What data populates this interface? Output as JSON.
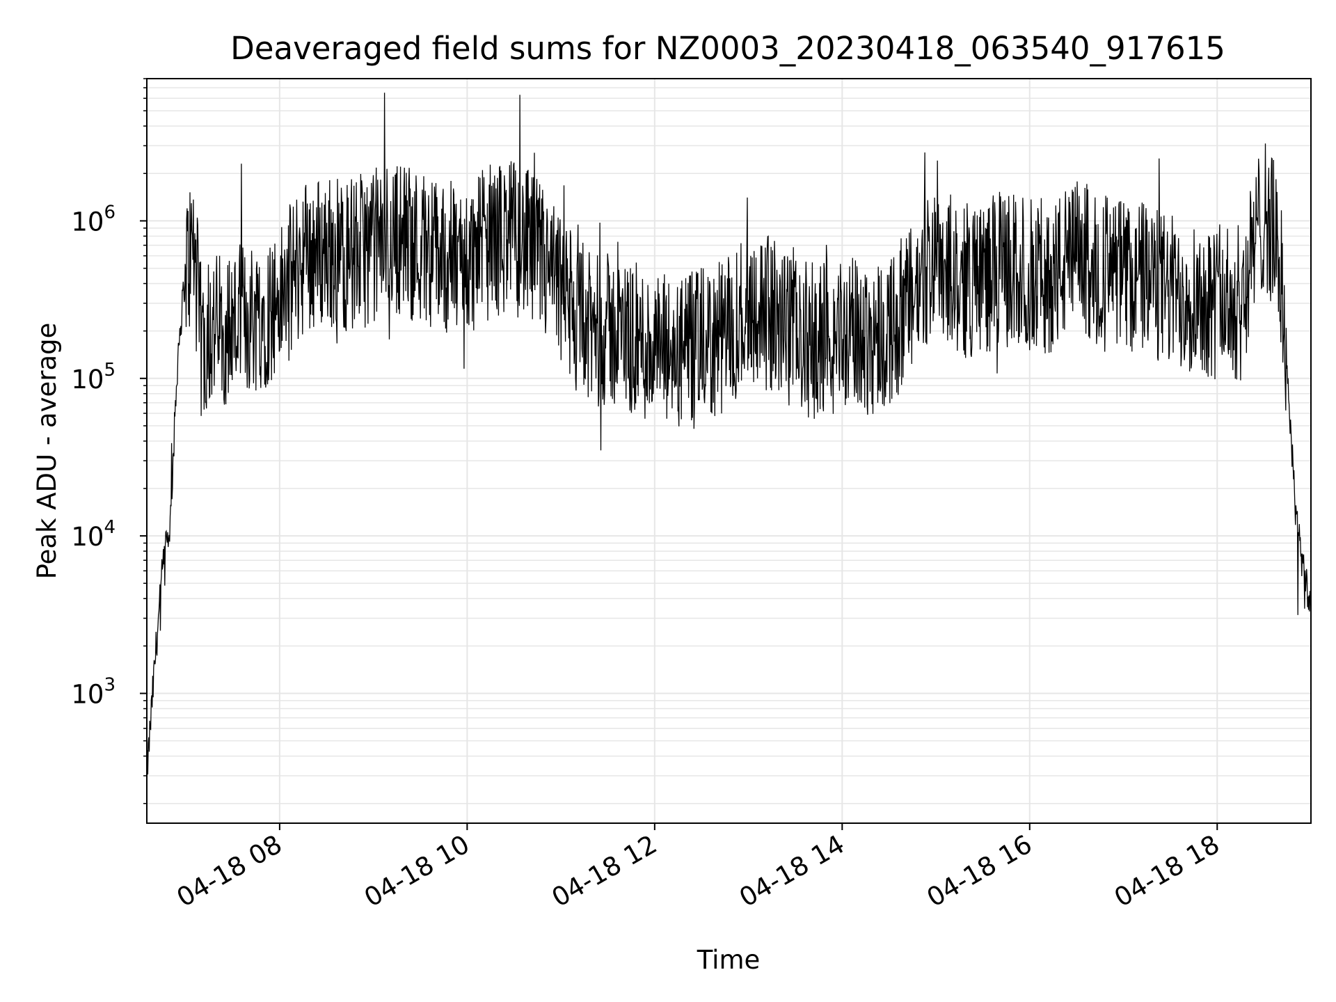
{
  "chart_data": {
    "type": "line",
    "title": "Deaveraged field sums for NZ0003_20230418_063540_917615",
    "xlabel": "Time",
    "ylabel": "Peak ADU - average",
    "yscale": "log",
    "ylim": [
      150,
      8000000
    ],
    "xlim": [
      "2023-04-18 06:35",
      "2023-04-18 19:00"
    ],
    "grid": true,
    "line_color": "#000000",
    "grid_color": "#e6e6e6",
    "x_ticks": [
      {
        "t": "2023-04-18 08:00",
        "label": "04-18 08"
      },
      {
        "t": "2023-04-18 10:00",
        "label": "04-18 10"
      },
      {
        "t": "2023-04-18 12:00",
        "label": "04-18 12"
      },
      {
        "t": "2023-04-18 14:00",
        "label": "04-18 14"
      },
      {
        "t": "2023-04-18 16:00",
        "label": "04-18 16"
      },
      {
        "t": "2023-04-18 18:00",
        "label": "04-18 18"
      }
    ],
    "y_ticks": [
      {
        "v": 1000,
        "base": "10",
        "exp": "3"
      },
      {
        "v": 10000,
        "base": "10",
        "exp": "4"
      },
      {
        "v": 100000,
        "base": "10",
        "exp": "5"
      },
      {
        "v": 1000000,
        "base": "10",
        "exp": "6"
      }
    ],
    "series": [
      {
        "x": [
          "2023-04-18 06:35",
          "2023-04-18 06:40",
          "2023-04-18 06:45",
          "2023-04-18 06:50",
          "2023-04-18 06:55",
          "2023-04-18 07:00",
          "2023-04-18 07:05",
          "2023-04-18 07:10",
          "2023-04-18 07:15",
          "2023-04-18 07:30",
          "2023-04-18 07:45",
          "2023-04-18 08:00",
          "2023-04-18 08:15",
          "2023-04-18 08:30",
          "2023-04-18 08:45",
          "2023-04-18 09:00",
          "2023-04-18 09:15",
          "2023-04-18 09:30",
          "2023-04-18 09:45",
          "2023-04-18 10:00",
          "2023-04-18 10:15",
          "2023-04-18 10:30",
          "2023-04-18 10:45",
          "2023-04-18 11:00",
          "2023-04-18 11:15",
          "2023-04-18 11:30",
          "2023-04-18 11:45",
          "2023-04-18 12:00",
          "2023-04-18 12:15",
          "2023-04-18 12:30",
          "2023-04-18 12:45",
          "2023-04-18 13:00",
          "2023-04-18 13:15",
          "2023-04-18 13:30",
          "2023-04-18 13:45",
          "2023-04-18 14:00",
          "2023-04-18 14:15",
          "2023-04-18 14:30",
          "2023-04-18 14:45",
          "2023-04-18 15:00",
          "2023-04-18 15:15",
          "2023-04-18 15:30",
          "2023-04-18 15:45",
          "2023-04-18 16:00",
          "2023-04-18 16:15",
          "2023-04-18 16:30",
          "2023-04-18 16:45",
          "2023-04-18 17:00",
          "2023-04-18 17:15",
          "2023-04-18 17:30",
          "2023-04-18 17:45",
          "2023-04-18 18:00",
          "2023-04-18 18:15",
          "2023-04-18 18:30",
          "2023-04-18 18:40",
          "2023-04-18 18:45",
          "2023-04-18 18:50",
          "2023-04-18 18:55",
          "2023-04-18 19:00"
        ],
        "y": [
          300,
          1500,
          6000,
          12000,
          150000,
          500000,
          700000,
          150000,
          200000,
          220000,
          250000,
          300000,
          600000,
          650000,
          600000,
          700000,
          800000,
          700000,
          600000,
          550000,
          750000,
          800000,
          600000,
          350000,
          200000,
          200000,
          180000,
          150000,
          140000,
          160000,
          180000,
          300000,
          250000,
          180000,
          170000,
          200000,
          180000,
          200000,
          300000,
          650000,
          400000,
          450000,
          500000,
          450000,
          450000,
          600000,
          500000,
          450000,
          420000,
          350000,
          350000,
          300000,
          300000,
          1200000,
          600000,
          100000,
          15000,
          6000,
          3500
        ]
      }
    ]
  }
}
